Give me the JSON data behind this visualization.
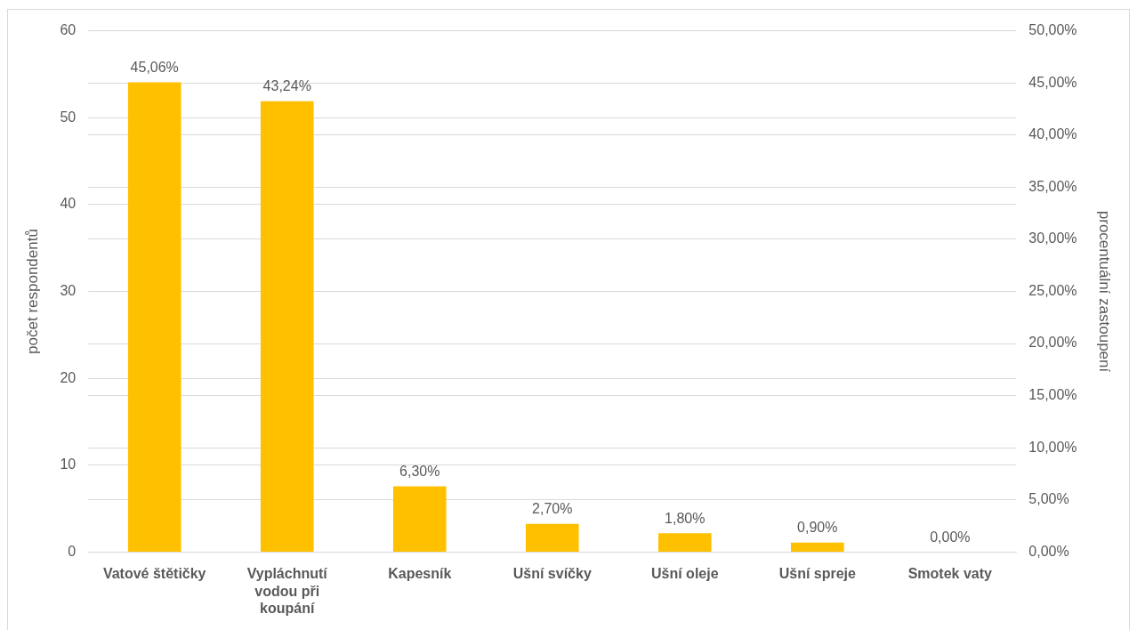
{
  "chart_data": {
    "type": "bar",
    "ylabel": "počet respondentů",
    "y2label": "procentuální zastoupení",
    "categories": [
      "Vatové štětičky",
      "Vypláchnutí vodou při koupání",
      "Kapesník",
      "Ušní svíčky",
      "Ušní oleje",
      "Ušní spreje",
      "Smotek vaty"
    ],
    "series": [
      {
        "color": "#ffc000",
        "axis": "y2",
        "values": [
          45.06,
          43.24,
          6.3,
          2.7,
          1.8,
          0.9,
          0.0
        ],
        "value_labels": [
          "45,06%",
          "43,24%",
          "6,30%",
          "2,70%",
          "1,80%",
          "0,90%",
          "0,00%"
        ]
      }
    ],
    "ylim": [
      0,
      60
    ],
    "yticks": [
      0,
      10,
      20,
      30,
      40,
      50,
      60
    ],
    "y2lim": [
      0,
      50
    ],
    "y2ticks": [
      {
        "value": 0,
        "label": "0,00%"
      },
      {
        "value": 5,
        "label": "5,00%"
      },
      {
        "value": 10,
        "label": "10,00%"
      },
      {
        "value": 15,
        "label": "15,00%"
      },
      {
        "value": 20,
        "label": "20,00%"
      },
      {
        "value": 25,
        "label": "25,00%"
      },
      {
        "value": 30,
        "label": "30,00%"
      },
      {
        "value": 35,
        "label": "35,00%"
      },
      {
        "value": 40,
        "label": "40,00%"
      },
      {
        "value": 45,
        "label": "45,00%"
      },
      {
        "value": 50,
        "label": "50,00%"
      }
    ],
    "grid": true,
    "legend": false
  }
}
